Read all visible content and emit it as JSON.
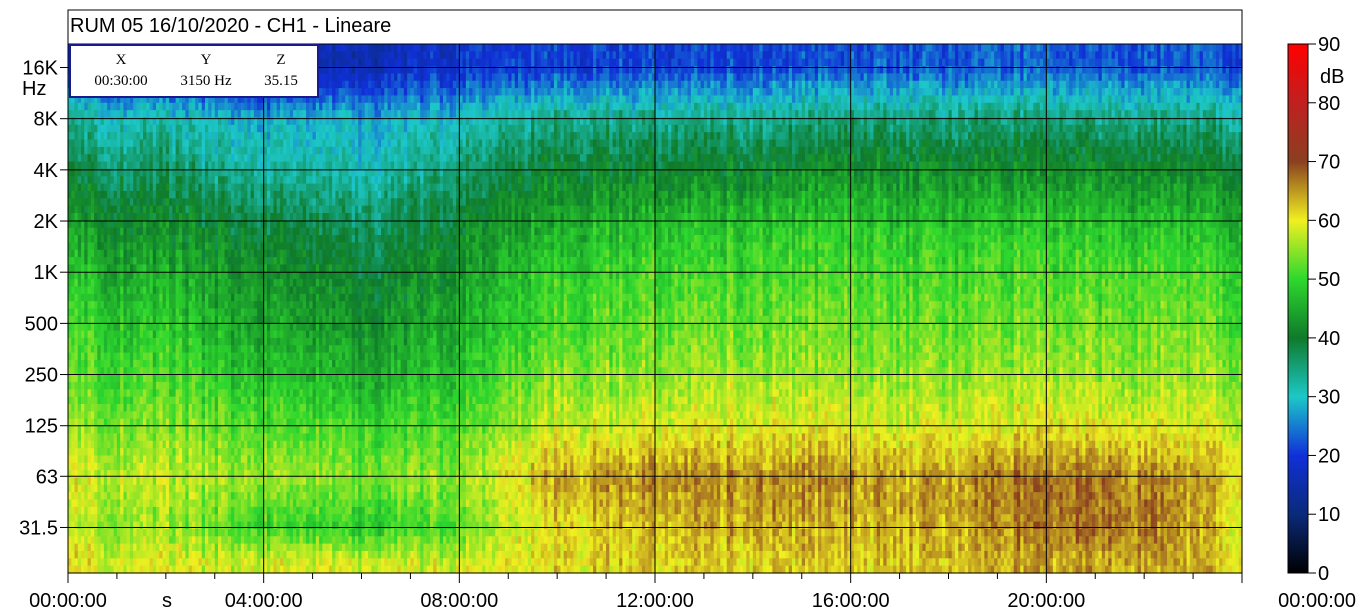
{
  "chart_data": {
    "type": "heatmap",
    "title": "RUM 05 16/10/2020 - CH1 - Lineare",
    "xlabel": "s",
    "ylabel": "Hz",
    "x_ticks": [
      "00:00:00",
      "04:00:00",
      "08:00:00",
      "12:00:00",
      "16:00:00",
      "20:00:00",
      "00:00:00"
    ],
    "x_range_hours": [
      0,
      24
    ],
    "y_scale": "log2",
    "y_ticks": [
      "31.5",
      "63",
      "125",
      "250",
      "500",
      "1K",
      "2K",
      "4K",
      "8K",
      "16K"
    ],
    "y_tick_values": [
      31.5,
      63,
      125,
      250,
      500,
      1000,
      2000,
      4000,
      8000,
      16000
    ],
    "colorbar": {
      "label": "dB",
      "ticks": [
        "0",
        "10",
        "20",
        "30",
        "40",
        "50",
        "60",
        "70",
        "80",
        "90"
      ],
      "range": [
        0,
        90
      ],
      "colors": [
        "#000000",
        "#0a2a7a",
        "#1030d8",
        "#1cc8c8",
        "#0f7a2a",
        "#2ed82e",
        "#f0f020",
        "#8a4020",
        "#c02020",
        "#ff0000"
      ]
    },
    "cursor": {
      "headers": [
        "X",
        "Y",
        "Z"
      ],
      "values": [
        "00:30:00",
        "3150 Hz",
        "35.15"
      ]
    },
    "grid": true,
    "bands": [
      {
        "freq": 16000,
        "levels_db": [
          18,
          17,
          14,
          16,
          19,
          20,
          21,
          21,
          22,
          23,
          23,
          22,
          22
        ]
      },
      {
        "freq": 8000,
        "levels_db": [
          33,
          31,
          28,
          28,
          30,
          34,
          34,
          34,
          35,
          35,
          35,
          34,
          34
        ]
      },
      {
        "freq": 4000,
        "levels_db": [
          38,
          36,
          32,
          31,
          35,
          40,
          41,
          41,
          42,
          42,
          42,
          41,
          40
        ]
      },
      {
        "freq": 2000,
        "levels_db": [
          43,
          41,
          38,
          36,
          40,
          45,
          47,
          48,
          48,
          48,
          48,
          47,
          46
        ]
      },
      {
        "freq": 1000,
        "levels_db": [
          47,
          45,
          42,
          39,
          43,
          49,
          51,
          51,
          51,
          51,
          51,
          51,
          50
        ]
      },
      {
        "freq": 500,
        "levels_db": [
          50,
          48,
          44,
          42,
          45,
          51,
          53,
          53,
          53,
          53,
          53,
          53,
          52
        ]
      },
      {
        "freq": 250,
        "levels_db": [
          52,
          51,
          47,
          45,
          48,
          54,
          55,
          56,
          55,
          55,
          56,
          55,
          55
        ]
      },
      {
        "freq": 125,
        "levels_db": [
          55,
          54,
          51,
          50,
          51,
          58,
          59,
          60,
          59,
          59,
          60,
          59,
          58
        ]
      },
      {
        "freq": 63,
        "levels_db": [
          59,
          57,
          55,
          54,
          55,
          64,
          66,
          66,
          65,
          65,
          67,
          66,
          62
        ]
      },
      {
        "freq": 31.5,
        "levels_db": [
          57,
          55,
          50,
          48,
          52,
          61,
          63,
          64,
          63,
          64,
          67,
          67,
          60
        ]
      },
      {
        "freq": 20,
        "levels_db": [
          60,
          59,
          58,
          58,
          58,
          61,
          62,
          62,
          62,
          63,
          64,
          64,
          62
        ]
      }
    ]
  }
}
